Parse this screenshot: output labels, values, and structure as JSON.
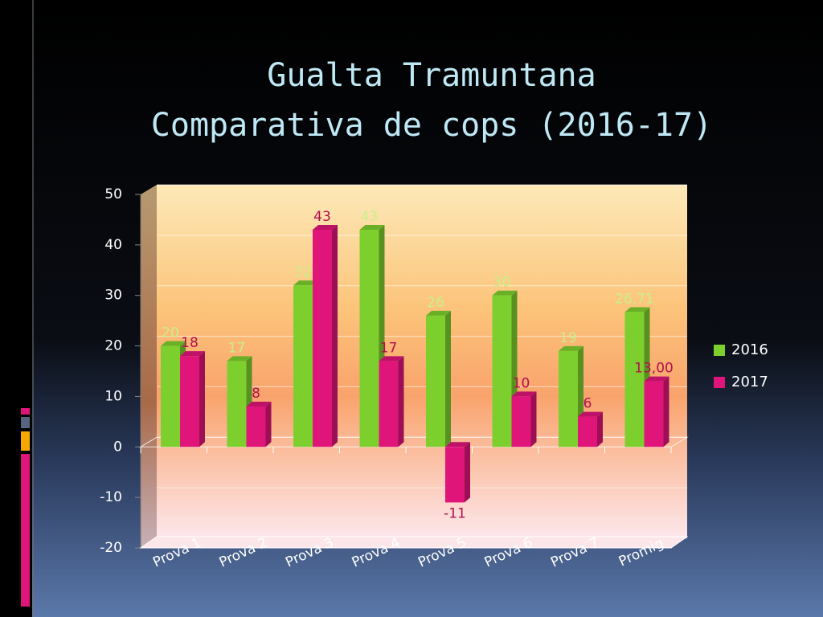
{
  "chart_data": {
    "type": "bar",
    "title": "Gualta Tramuntana",
    "subtitle": "Comparativa de cops (2016-17)",
    "categories": [
      "Prova 1",
      "Prova 2",
      "Prova 3",
      "Prova 4",
      "Prova 5",
      "Prova 6",
      "Prova 7",
      "Promig"
    ],
    "series": [
      {
        "name": "2016",
        "color": "#7dcf2e",
        "values": [
          20,
          17,
          32,
          43,
          26,
          30,
          19,
          26.71
        ],
        "value_labels": [
          "20",
          "17",
          "32",
          "43",
          "26",
          "30",
          "19",
          "26,71"
        ]
      },
      {
        "name": "2017",
        "color": "#e0157a",
        "values": [
          18,
          8,
          43,
          17,
          -11,
          10,
          6,
          13.0
        ],
        "value_labels": [
          "18",
          "8",
          "43",
          "17",
          "-11",
          "10",
          "6",
          "13,00"
        ]
      }
    ],
    "ylim": [
      -20,
      50
    ],
    "yticks": [
      -20,
      -10,
      0,
      10,
      20,
      30,
      40,
      50
    ],
    "grid": true,
    "legend": "right"
  }
}
